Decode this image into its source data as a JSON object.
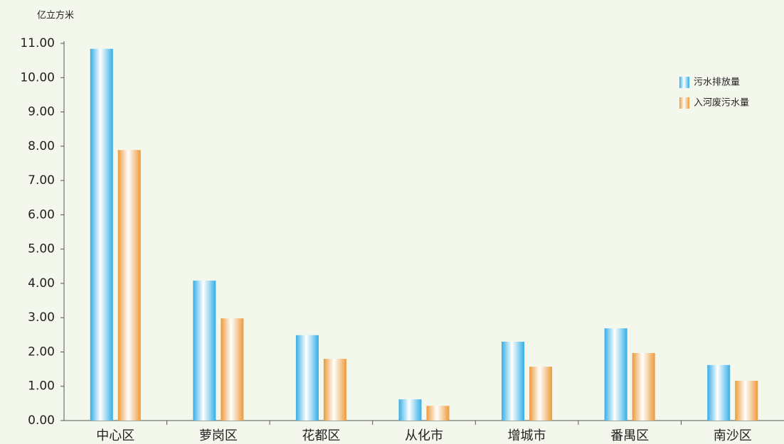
{
  "chart_data": {
    "type": "bar",
    "y_label": "亿立方米",
    "categories": [
      "中心区",
      "萝岗区",
      "花都区",
      "从化市",
      "增城市",
      "番禺区",
      "南沙区"
    ],
    "series": [
      {
        "name": "污水排放量",
        "color": "#36aee6",
        "values": [
          10.84,
          4.08,
          2.49,
          0.62,
          2.3,
          2.69,
          1.62
        ]
      },
      {
        "name": "入河废污水量",
        "color": "#ec9a3c",
        "values": [
          7.89,
          2.98,
          1.8,
          0.43,
          1.57,
          1.97,
          1.16
        ]
      }
    ],
    "ylim": [
      0,
      11
    ],
    "yticks": [
      {
        "value": 0,
        "label": "0.00"
      },
      {
        "value": 1,
        "label": "1.00"
      },
      {
        "value": 2,
        "label": "2.00"
      },
      {
        "value": 3,
        "label": "3.00"
      },
      {
        "value": 4,
        "label": "4.00"
      },
      {
        "value": 5,
        "label": "5.00"
      },
      {
        "value": 6,
        "label": "6.00"
      },
      {
        "value": 7,
        "label": "7.00"
      },
      {
        "value": 8,
        "label": "8.00"
      },
      {
        "value": 9,
        "label": "9.00"
      },
      {
        "value": 10,
        "label": "10.00"
      },
      {
        "value": 11,
        "label": "11.00"
      }
    ],
    "grid": false,
    "legend": "upper right"
  }
}
